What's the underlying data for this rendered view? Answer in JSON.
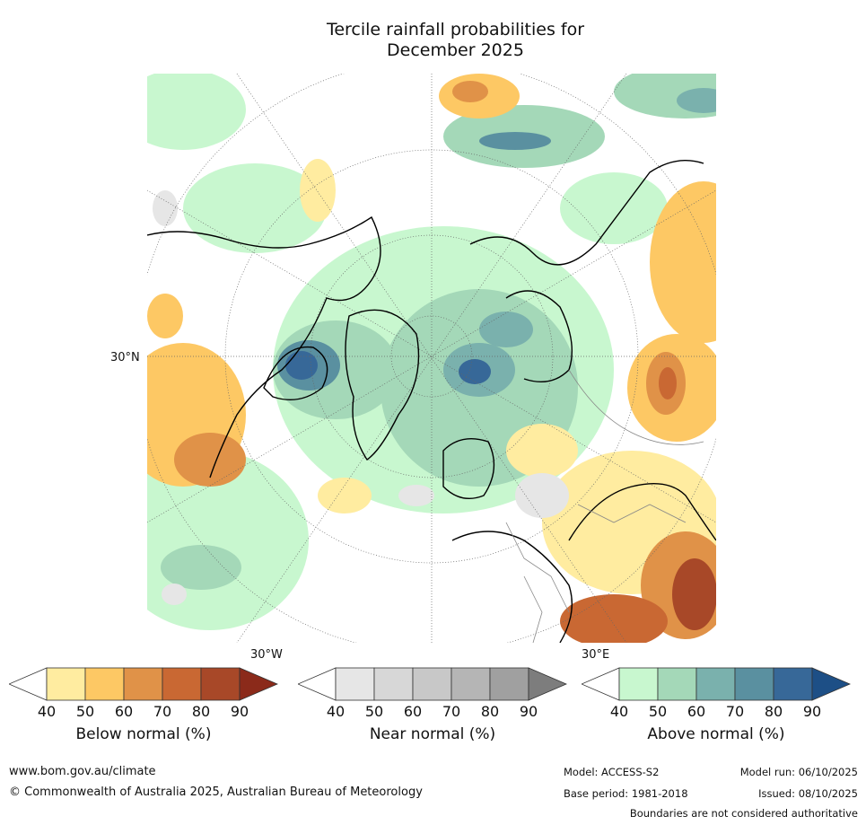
{
  "title": {
    "line1": "Tercile rainfall probabilities for",
    "line2": "December 2025"
  },
  "map": {
    "lat_label": "30°N",
    "lon_labels": {
      "left": "30°W",
      "right": "30°E"
    }
  },
  "colorbars": [
    {
      "name": "below",
      "label": "Below normal (%)",
      "ticks": [
        "40",
        "50",
        "60",
        "70",
        "80",
        "90"
      ],
      "colors": [
        "#ffffff",
        "#ffeca0",
        "#fdc864",
        "#e09248",
        "#c96833",
        "#a84828",
        "#8b2a1a"
      ]
    },
    {
      "name": "near",
      "label": "Near normal (%)",
      "ticks": [
        "40",
        "50",
        "60",
        "70",
        "80",
        "90"
      ],
      "colors": [
        "#ffffff",
        "#e6e6e6",
        "#d7d7d7",
        "#c8c8c8",
        "#b5b5b5",
        "#a0a0a0",
        "#7d7d7d"
      ]
    },
    {
      "name": "above",
      "label": "Above normal (%)",
      "ticks": [
        "40",
        "50",
        "60",
        "70",
        "80",
        "90"
      ],
      "colors": [
        "#ffffff",
        "#c8f7cf",
        "#a4d8b8",
        "#7ab1ad",
        "#5a90a0",
        "#376898",
        "#1d4f86"
      ]
    }
  ],
  "footer": {
    "url": "www.bom.gov.au/climate",
    "copyright": "© Commonwealth of Australia 2025, Australian Bureau of Meteorology",
    "model": "Model: ACCESS-S2",
    "model_run": "Model run: 06/10/2025",
    "base_period": "Base period: 1981-2018",
    "issued": "Issued: 08/10/2025",
    "disclaimer": "Boundaries are not considered authoritative"
  }
}
